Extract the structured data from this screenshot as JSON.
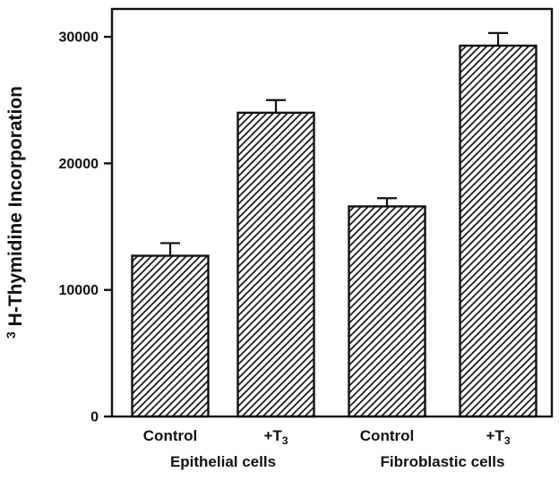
{
  "figure": {
    "background": "#ffffff",
    "ink_color": "#111111"
  },
  "chart_data": {
    "type": "bar",
    "title": "",
    "ylabel": "3H-Thymidine Incorporation",
    "ylabel_sup": "3",
    "ylabel_main": "H-Thymidine Incorporation",
    "xlabel": "",
    "ylim": [
      0,
      32200
    ],
    "yticks": [
      0,
      10000,
      20000,
      30000
    ],
    "grid": false,
    "legend": "none",
    "bar_style": "diagonal-hatch",
    "ink_color": "#111111",
    "categories": [
      {
        "label": "Control",
        "sub": ""
      },
      {
        "label": "+T",
        "sub": "3"
      },
      {
        "label": "Control",
        "sub": ""
      },
      {
        "label": "+T",
        "sub": "3"
      }
    ],
    "groups": [
      "Epithelial cells",
      "Fibroblastic cells"
    ],
    "series": [
      {
        "name": "3H-Thymidine Incorporation",
        "values": [
          12700,
          24000,
          16600,
          29300
        ],
        "errors": [
          1000,
          1000,
          650,
          1000
        ]
      }
    ]
  }
}
